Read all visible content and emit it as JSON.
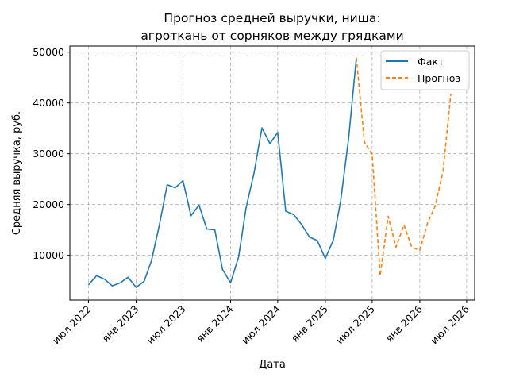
{
  "chart_data": {
    "type": "line",
    "title": [
      "Прогноз средней выручки, ниша:",
      "агроткань от сорняков между грядками"
    ],
    "xlabel": "Дата",
    "ylabel": "Средняя выручка, руб.",
    "grid": true,
    "legend_position": "top-right",
    "x_ticks": [
      {
        "date": "2022-07-01",
        "label": "июл 2022"
      },
      {
        "date": "2023-01-01",
        "label": "янв 2023"
      },
      {
        "date": "2023-07-01",
        "label": "июл 2023"
      },
      {
        "date": "2024-01-01",
        "label": "янв 2024"
      },
      {
        "date": "2024-07-01",
        "label": "июл 2024"
      },
      {
        "date": "2025-01-01",
        "label": "янв 2025"
      },
      {
        "date": "2025-07-01",
        "label": "июл 2025"
      },
      {
        "date": "2026-01-01",
        "label": "янв 2026"
      },
      {
        "date": "2026-07-01",
        "label": "июл 2026"
      }
    ],
    "y_ticks": [
      10000,
      20000,
      30000,
      40000,
      50000
    ],
    "xlim": [
      "2022-04-20",
      "2026-08-01"
    ],
    "ylim": [
      1200,
      51200
    ],
    "series": [
      {
        "name": "Факт",
        "color": "#1f77b4",
        "dash": "solid",
        "points": [
          [
            "2022-07-01",
            4200
          ],
          [
            "2022-08-01",
            6000
          ],
          [
            "2022-09-01",
            5300
          ],
          [
            "2022-10-01",
            4000
          ],
          [
            "2022-11-01",
            4600
          ],
          [
            "2022-12-01",
            5700
          ],
          [
            "2023-01-01",
            3700
          ],
          [
            "2023-02-01",
            4900
          ],
          [
            "2023-03-01",
            8900
          ],
          [
            "2023-04-01",
            16000
          ],
          [
            "2023-05-01",
            23900
          ],
          [
            "2023-06-01",
            23300
          ],
          [
            "2023-07-01",
            24700
          ],
          [
            "2023-08-01",
            17800
          ],
          [
            "2023-09-01",
            19900
          ],
          [
            "2023-10-01",
            15200
          ],
          [
            "2023-11-01",
            15000
          ],
          [
            "2023-12-01",
            7200
          ],
          [
            "2024-01-01",
            4600
          ],
          [
            "2024-02-01",
            9700
          ],
          [
            "2024-03-01",
            19400
          ],
          [
            "2024-04-01",
            26300
          ],
          [
            "2024-05-01",
            35100
          ],
          [
            "2024-06-01",
            32000
          ],
          [
            "2024-07-01",
            34200
          ],
          [
            "2024-08-01",
            18700
          ],
          [
            "2024-09-01",
            18000
          ],
          [
            "2024-10-01",
            16100
          ],
          [
            "2024-11-01",
            13600
          ],
          [
            "2024-12-01",
            12900
          ],
          [
            "2025-01-01",
            9400
          ],
          [
            "2025-02-01",
            13000
          ],
          [
            "2025-03-01",
            20600
          ],
          [
            "2025-04-01",
            33000
          ],
          [
            "2025-05-01",
            48900
          ]
        ]
      },
      {
        "name": "Прогноз",
        "color": "#ff7f0e",
        "dash": "dashed",
        "points": [
          [
            "2025-05-01",
            48900
          ],
          [
            "2025-06-01",
            32300
          ],
          [
            "2025-07-01",
            29900
          ],
          [
            "2025-08-01",
            6000
          ],
          [
            "2025-09-01",
            17700
          ],
          [
            "2025-10-01",
            11600
          ],
          [
            "2025-11-01",
            16000
          ],
          [
            "2025-12-01",
            11600
          ],
          [
            "2026-01-01",
            11000
          ],
          [
            "2026-02-01",
            16500
          ],
          [
            "2026-03-01",
            19600
          ],
          [
            "2026-04-01",
            26600
          ],
          [
            "2026-05-01",
            41800
          ]
        ]
      }
    ]
  }
}
